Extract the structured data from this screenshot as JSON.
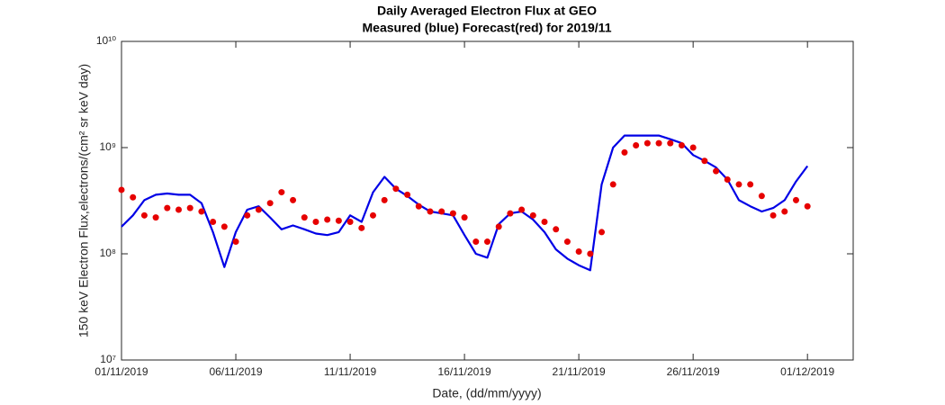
{
  "chart_data": {
    "type": "line",
    "title": "Daily Averaged Electron Flux at GEO",
    "subtitle": "Measured (blue) Forecast(red) for 2019/11",
    "xlabel": "Date, (dd/mm/yyyy)",
    "ylabel": "150 keV Electron Flux,electrons/(cm² sr keV day)",
    "log_y": true,
    "grid": false,
    "x": [
      "2019-11-01T00:00",
      "2019-11-01T12:00",
      "2019-11-02T00:00",
      "2019-11-02T12:00",
      "2019-11-03T00:00",
      "2019-11-03T12:00",
      "2019-11-04T00:00",
      "2019-11-04T12:00",
      "2019-11-05T00:00",
      "2019-11-05T12:00",
      "2019-11-06T00:00",
      "2019-11-06T12:00",
      "2019-11-07T00:00",
      "2019-11-07T12:00",
      "2019-11-08T00:00",
      "2019-11-08T12:00",
      "2019-11-09T00:00",
      "2019-11-09T12:00",
      "2019-11-10T00:00",
      "2019-11-10T12:00",
      "2019-11-11T00:00",
      "2019-11-11T12:00",
      "2019-11-12T00:00",
      "2019-11-12T12:00",
      "2019-11-13T00:00",
      "2019-11-13T12:00",
      "2019-11-14T00:00",
      "2019-11-14T12:00",
      "2019-11-15T00:00",
      "2019-11-15T12:00",
      "2019-11-16T00:00",
      "2019-11-16T12:00",
      "2019-11-17T00:00",
      "2019-11-17T12:00",
      "2019-11-18T00:00",
      "2019-11-18T12:00",
      "2019-11-19T00:00",
      "2019-11-19T12:00",
      "2019-11-20T00:00",
      "2019-11-20T12:00",
      "2019-11-21T00:00",
      "2019-11-21T12:00",
      "2019-11-22T00:00",
      "2019-11-22T12:00",
      "2019-11-23T00:00",
      "2019-11-23T12:00",
      "2019-11-24T00:00",
      "2019-11-24T12:00",
      "2019-11-25T00:00",
      "2019-11-25T12:00",
      "2019-11-26T00:00",
      "2019-11-26T12:00",
      "2019-11-27T00:00",
      "2019-11-27T12:00",
      "2019-11-28T00:00",
      "2019-11-28T12:00",
      "2019-11-29T00:00",
      "2019-11-29T12:00",
      "2019-11-30T00:00",
      "2019-11-30T12:00",
      "2019-12-01T00:00"
    ],
    "series": [
      {
        "name": "Measured",
        "color": "#0000e6",
        "mode": "line",
        "values": [
          180000000,
          230000000,
          320000000,
          360000000,
          370000000,
          360000000,
          360000000,
          300000000,
          160000000,
          75000000,
          160000000,
          260000000,
          280000000,
          220000000,
          170000000,
          185000000,
          170000000,
          155000000,
          150000000,
          160000000,
          230000000,
          200000000,
          380000000,
          530000000,
          410000000,
          350000000,
          290000000,
          250000000,
          240000000,
          230000000,
          150000000,
          100000000,
          92000000,
          190000000,
          240000000,
          250000000,
          210000000,
          160000000,
          110000000,
          90000000,
          78000000,
          70000000,
          450000000,
          1000000000,
          1300000000,
          1300000000,
          1300000000,
          1300000000,
          1200000000,
          1100000000,
          850000000,
          750000000,
          650000000,
          500000000,
          320000000,
          280000000,
          250000000,
          270000000,
          320000000,
          480000000,
          670000000
        ]
      },
      {
        "name": "Forecast",
        "color": "#e60000",
        "mode": "markers",
        "values": [
          400000000,
          340000000,
          230000000,
          220000000,
          270000000,
          260000000,
          270000000,
          250000000,
          200000000,
          180000000,
          130000000,
          230000000,
          260000000,
          300000000,
          380000000,
          320000000,
          220000000,
          200000000,
          210000000,
          205000000,
          200000000,
          175000000,
          230000000,
          320000000,
          410000000,
          360000000,
          280000000,
          250000000,
          250000000,
          240000000,
          220000000,
          130000000,
          130000000,
          180000000,
          240000000,
          260000000,
          230000000,
          200000000,
          170000000,
          130000000,
          105000000,
          100000000,
          160000000,
          450000000,
          900000000,
          1050000000,
          1100000000,
          1100000000,
          1100000000,
          1050000000,
          1000000000,
          750000000,
          600000000,
          500000000,
          450000000,
          450000000,
          350000000,
          230000000,
          250000000,
          320000000,
          280000000
        ]
      }
    ],
    "xlim": [
      "2019-11-01T00:00",
      "2019-12-03T00:00"
    ],
    "xticks": [
      {
        "value": "2019-11-01T00:00",
        "label": "01/11/2019"
      },
      {
        "value": "2019-11-06T00:00",
        "label": "06/11/2019"
      },
      {
        "value": "2019-11-11T00:00",
        "label": "11/11/2019"
      },
      {
        "value": "2019-11-16T00:00",
        "label": "16/11/2019"
      },
      {
        "value": "2019-11-21T00:00",
        "label": "21/11/2019"
      },
      {
        "value": "2019-11-26T00:00",
        "label": "26/11/2019"
      },
      {
        "value": "2019-12-01T00:00",
        "label": "01/12/2019"
      }
    ],
    "ylim": [
      10000000,
      10000000000
    ],
    "yticks": [
      {
        "value": 10000000,
        "label": "10⁷"
      },
      {
        "value": 100000000,
        "label": "10⁸"
      },
      {
        "value": 1000000000,
        "label": "10⁹"
      },
      {
        "value": 10000000000,
        "label": "10¹⁰"
      }
    ]
  }
}
